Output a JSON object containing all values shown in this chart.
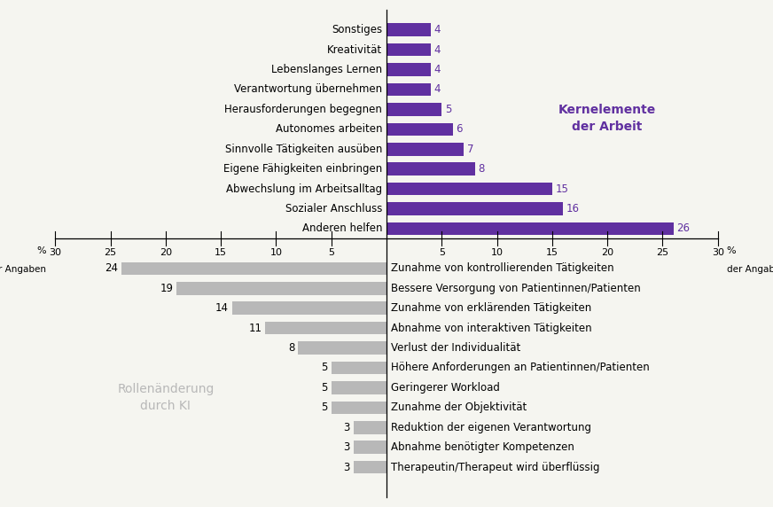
{
  "top_labels": [
    "Anderen helfen",
    "Sozialer Anschluss",
    "Abwechslung im Arbeitsalltag",
    "Eigene Fähigkeiten einbringen",
    "Sinnvolle Tätigkeiten ausüben",
    "Autonomes arbeiten",
    "Herausforderungen begegnen",
    "Verantwortung übernehmen",
    "Lebenslanges Lernen",
    "Kreativität",
    "Sonstiges"
  ],
  "top_values": [
    26,
    16,
    15,
    8,
    7,
    6,
    5,
    4,
    4,
    4,
    4
  ],
  "top_color": "#6030a0",
  "bottom_labels": [
    "Zunahme von kontrollierenden Tätigkeiten",
    "Bessere Versorgung von Patientinnen/Patienten",
    "Zunahme von erklärenden Tätigkeiten",
    "Abnahme von interaktiven Tätigkeiten",
    "Verlust der Individualität",
    "Höhere Anforderungen an Patientinnen/Patienten",
    "Geringerer Workload",
    "Zunahme der Objektivität",
    "Reduktion der eigenen Verantwortung",
    "Abnahme benötigter Kompetenzen",
    "Therapeutin/Therapeut wird überflüssig"
  ],
  "bottom_values": [
    24,
    19,
    14,
    11,
    8,
    5,
    5,
    5,
    3,
    3,
    3
  ],
  "bottom_color": "#b8b8b8",
  "top_annotation": "Kernelemente\nder Arbeit",
  "top_annotation_color": "#6030a0",
  "bottom_annotation": "Rollenänderung\ndurch KI",
  "bottom_annotation_color": "#b8b8b8",
  "xlim": 30,
  "background_color": "#f5f5f0",
  "tick_fontsize": 8,
  "label_fontsize": 8.5,
  "value_fontsize": 8.5
}
